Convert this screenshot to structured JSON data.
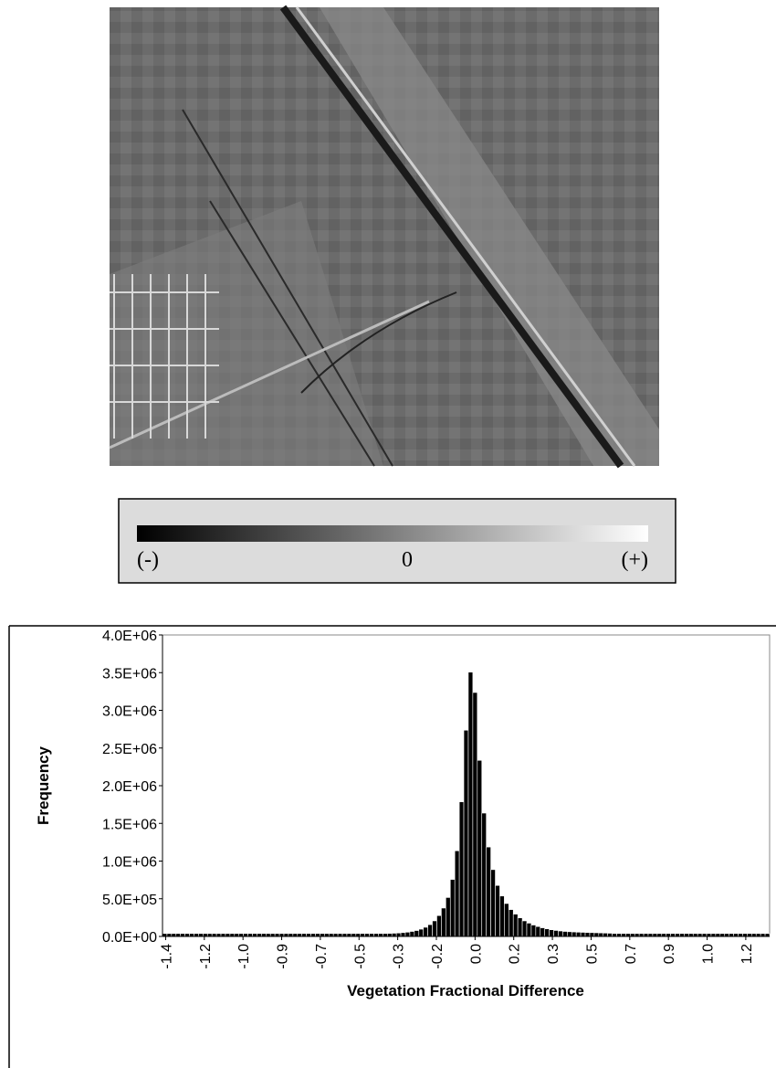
{
  "colorbar": {
    "labels": [
      "(-)",
      "0",
      "(+)"
    ]
  },
  "chart_data": {
    "type": "histogram",
    "xlabel": "Vegetation Fractional Difference",
    "ylabel": "Frequency",
    "color": "#000000",
    "grid": false,
    "xlim": [
      -1.39,
      1.31
    ],
    "ylim": [
      0,
      4000000
    ],
    "xticks": [
      {
        "value": -1.376,
        "label": "-1.4"
      },
      {
        "value": -1.204,
        "label": "-1.2"
      },
      {
        "value": -1.032,
        "label": "-1.0"
      },
      {
        "value": -0.86,
        "label": "-0.9"
      },
      {
        "value": -0.688,
        "label": "-0.7"
      },
      {
        "value": -0.516,
        "label": "-0.5"
      },
      {
        "value": -0.344,
        "label": "-0.3"
      },
      {
        "value": -0.172,
        "label": "-0.2"
      },
      {
        "value": 0,
        "label": "0.0"
      },
      {
        "value": 0.172,
        "label": "0.2"
      },
      {
        "value": 0.344,
        "label": "0.3"
      },
      {
        "value": 0.516,
        "label": "0.5"
      },
      {
        "value": 0.688,
        "label": "0.7"
      },
      {
        "value": 0.86,
        "label": "0.9"
      },
      {
        "value": 1.032,
        "label": "1.0"
      },
      {
        "value": 1.204,
        "label": "1.2"
      }
    ],
    "yticks": [
      {
        "value": 0,
        "label": "0.0E+00"
      },
      {
        "value": 500000,
        "label": "5.0E+05"
      },
      {
        "value": 1000000,
        "label": "1.0E+06"
      },
      {
        "value": 1500000,
        "label": "1.5E+06"
      },
      {
        "value": 2000000,
        "label": "2.0E+06"
      },
      {
        "value": 2500000,
        "label": "2.5E+06"
      },
      {
        "value": 3000000,
        "label": "3.0E+06"
      },
      {
        "value": 3500000,
        "label": "3.5E+06"
      },
      {
        "value": 4000000,
        "label": "4.0E+06"
      }
    ],
    "bins": [
      -1.39,
      -1.37,
      -1.35,
      -1.33,
      -1.31,
      -1.29,
      -1.27,
      -1.25,
      -1.23,
      -1.21,
      -1.19,
      -1.17,
      -1.15,
      -1.13,
      -1.11,
      -1.09,
      -1.07,
      -1.05,
      -1.03,
      -1.01,
      -0.99,
      -0.97,
      -0.95,
      -0.93,
      -0.91,
      -0.89,
      -0.87,
      -0.85,
      -0.83,
      -0.81,
      -0.79,
      -0.77,
      -0.75,
      -0.73,
      -0.71,
      -0.69,
      -0.67,
      -0.65,
      -0.63,
      -0.61,
      -0.59,
      -0.57,
      -0.55,
      -0.53,
      -0.51,
      -0.49,
      -0.47,
      -0.45,
      -0.43,
      -0.41,
      -0.39,
      -0.37,
      -0.35,
      -0.33,
      -0.31,
      -0.29,
      -0.27,
      -0.25,
      -0.23,
      -0.21,
      -0.19,
      -0.17,
      -0.15,
      -0.13,
      -0.11,
      -0.09,
      -0.07,
      -0.05,
      -0.03,
      -0.01,
      0.01,
      0.03,
      0.05,
      0.07,
      0.09,
      0.11,
      0.13,
      0.15,
      0.17,
      0.19,
      0.21,
      0.23,
      0.25,
      0.27,
      0.29,
      0.31,
      0.33,
      0.35,
      0.37,
      0.39,
      0.41,
      0.43,
      0.45,
      0.47,
      0.49,
      0.51,
      0.53,
      0.55,
      0.57,
      0.59,
      0.61,
      0.63,
      0.65,
      0.67,
      0.69,
      0.71,
      0.73,
      0.75,
      0.77,
      0.79,
      0.81,
      0.83,
      0.85,
      0.87,
      0.89,
      0.91,
      0.93,
      0.95,
      0.97,
      0.99,
      1.01,
      1.03,
      1.05,
      1.07,
      1.09,
      1.11,
      1.13,
      1.15,
      1.17,
      1.19,
      1.21,
      1.23,
      1.25,
      1.27,
      1.29,
      1.31
    ],
    "counts": [
      2000,
      2000,
      2000,
      2000,
      2000,
      2000,
      2000,
      2000,
      2000,
      2000,
      2000,
      2000,
      2000,
      2000,
      2000,
      2000,
      2000,
      2000,
      2000,
      2000,
      2000,
      2000,
      2000,
      2000,
      2000,
      2000,
      2000,
      2000,
      2000,
      2000,
      2000,
      2000,
      2000,
      2000,
      2000,
      2000,
      2000,
      2000,
      2000,
      2000,
      2000,
      2000,
      2000,
      2000,
      2000,
      2000,
      2000,
      2000,
      2000,
      2000,
      4000,
      6000,
      9000,
      14000,
      20000,
      30000,
      42000,
      60000,
      85000,
      120000,
      170000,
      240000,
      340000,
      480000,
      720000,
      1100000,
      1750000,
      2700000,
      3470000,
      3200000,
      2300000,
      1600000,
      1150000,
      850000,
      640000,
      500000,
      400000,
      320000,
      260000,
      210000,
      170000,
      140000,
      115000,
      95000,
      78000,
      64000,
      52000,
      43000,
      36000,
      30000,
      26000,
      23000,
      20000,
      18000,
      16000,
      14000,
      12000,
      10000,
      8000,
      6000,
      2000,
      2000,
      2000,
      2000,
      2000,
      2000,
      2000,
      2000,
      2000,
      2000,
      2000,
      2000,
      2000,
      2000,
      2000,
      2000,
      2000,
      2000,
      2000,
      2000,
      2000,
      2000,
      2000,
      2000,
      2000,
      2000,
      2000,
      2000,
      2000,
      2000,
      2000,
      2000,
      2000,
      2000,
      2000
    ]
  }
}
